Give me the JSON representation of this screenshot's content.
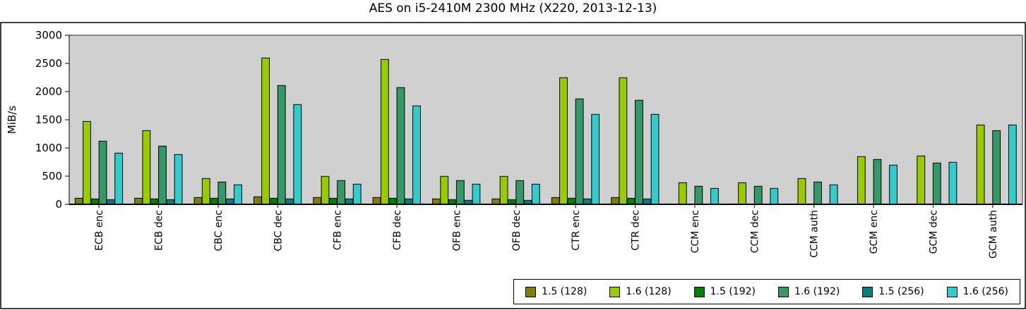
{
  "chart_data": {
    "type": "bar",
    "title": "AES on i5-2410M 2300 MHz (X220, 2013-12-13)",
    "xlabel": "",
    "ylabel": "MiB/s",
    "ylim": [
      0,
      3000
    ],
    "yticks": [
      0,
      500,
      1000,
      1500,
      2000,
      2500,
      3000
    ],
    "grid": false,
    "legend_position": "bottom-right",
    "plot_background": "#d0d0d0",
    "categories": [
      "ECB enc",
      "ECB dec",
      "CBC enc",
      "CBC dec",
      "CFB enc",
      "CFB dec",
      "OFB enc",
      "OFB dec",
      "CTR enc",
      "CTR dec",
      "CCM enc",
      "CCM dec",
      "CCM auth",
      "GCM enc",
      "GCM dec",
      "GCM auth"
    ],
    "series": [
      {
        "name": "1.5 (128)",
        "color": "#808000",
        "values": [
          108,
          108,
          121,
          133,
          121,
          121,
          96,
          96,
          121,
          121,
          null,
          null,
          null,
          null,
          null,
          null
        ]
      },
      {
        "name": "1.6 (128)",
        "color": "#99cc00",
        "values": [
          1470,
          1308,
          458,
          2596,
          496,
          2571,
          496,
          496,
          2246,
          2246,
          383,
          383,
          458,
          846,
          858,
          1408
        ]
      },
      {
        "name": "1.5 (192)",
        "color": "#008000",
        "values": [
          96,
          96,
          108,
          108,
          108,
          108,
          83,
          83,
          108,
          108,
          null,
          null,
          null,
          null,
          null,
          null
        ]
      },
      {
        "name": "1.6 (192)",
        "color": "#339966",
        "values": [
          1121,
          1033,
          396,
          2108,
          421,
          2071,
          421,
          421,
          1871,
          1846,
          321,
          321,
          396,
          796,
          733,
          1308
        ]
      },
      {
        "name": "1.5 (256)",
        "color": "#008080",
        "values": [
          83,
          83,
          96,
          96,
          96,
          96,
          71,
          71,
          96,
          96,
          null,
          null,
          null,
          null,
          null,
          null
        ]
      },
      {
        "name": "1.6 (256)",
        "color": "#33cccc",
        "values": [
          908,
          883,
          346,
          1771,
          358,
          1746,
          358,
          358,
          1596,
          1596,
          283,
          283,
          346,
          696,
          746,
          1408
        ]
      }
    ]
  }
}
